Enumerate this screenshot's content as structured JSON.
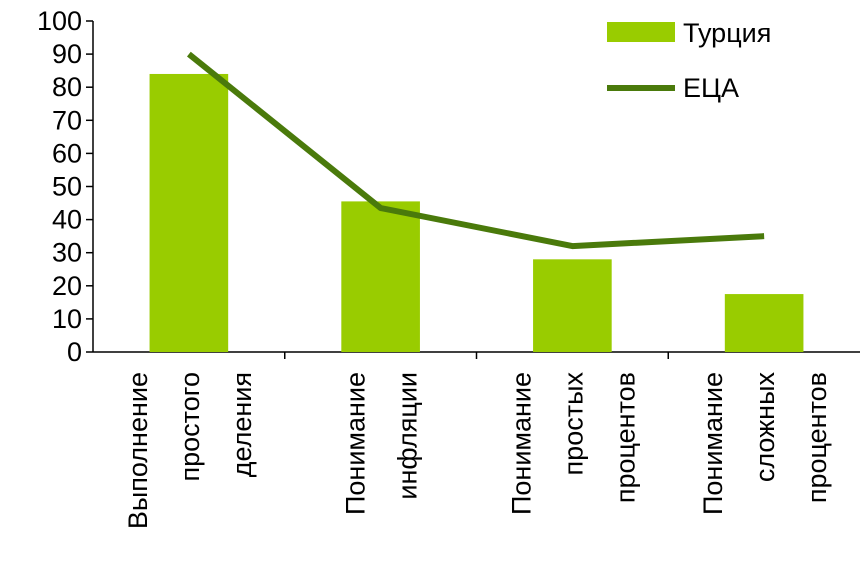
{
  "chart_data": {
    "type": "bar",
    "categories": [
      [
        "Выполнение",
        "простого",
        "деления"
      ],
      [
        "Понимание",
        "инфляции"
      ],
      [
        "Понимание",
        "простых",
        "процентов"
      ],
      [
        "Понимание",
        "сложных",
        "процентов"
      ]
    ],
    "series": [
      {
        "name": "Турция",
        "type": "bar",
        "color": "#99cc00",
        "values": [
          84,
          45.5,
          28,
          17.5
        ]
      },
      {
        "name": "ЕЦА",
        "type": "line",
        "color": "#4a7a0b",
        "values": [
          90,
          43.5,
          32,
          35
        ]
      }
    ],
    "ylim": [
      0,
      100
    ],
    "yticks": [
      "0",
      "10",
      "20",
      "30",
      "40",
      "50",
      "60",
      "70",
      "80",
      "90",
      "100"
    ],
    "legend_position": "top-right",
    "grid": false
  }
}
